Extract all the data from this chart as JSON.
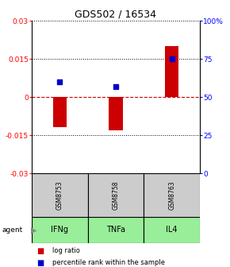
{
  "title": "GDS502 / 16534",
  "categories": [
    1,
    2,
    3
  ],
  "bar_values": [
    -0.012,
    -0.013,
    0.02
  ],
  "percentile_values": [
    60,
    57,
    75
  ],
  "sample_labels": [
    "GSM8753",
    "GSM8758",
    "GSM8763"
  ],
  "agent_labels": [
    "IFNg",
    "TNFa",
    "IL4"
  ],
  "ylim_left": [
    -0.03,
    0.03
  ],
  "ylim_right": [
    0,
    100
  ],
  "yticks_left": [
    -0.03,
    -0.015,
    0,
    0.015,
    0.03
  ],
  "ytick_labels_left": [
    "-0.03",
    "-0.015",
    "0",
    "0.015",
    "0.03"
  ],
  "yticks_right": [
    0,
    25,
    50,
    75,
    100
  ],
  "ytick_labels_right": [
    "0",
    "25",
    "50",
    "75",
    "100%"
  ],
  "bar_color": "#cc0000",
  "square_color": "#0000cc",
  "agent_bg_color": "#99ee99",
  "sample_bg_color": "#cccccc",
  "hline_color": "#cc0000",
  "dotted_color": "#000000",
  "bar_width": 0.25,
  "square_size": 18
}
